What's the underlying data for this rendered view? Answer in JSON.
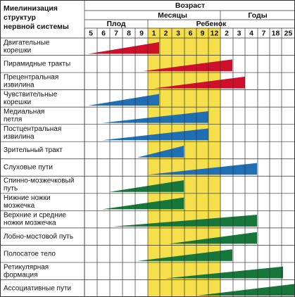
{
  "header": {
    "title": [
      "Миелинизация",
      "структур",
      "нервной системы"
    ],
    "age": "Возраст",
    "months": "Месяцы",
    "years": "Годы",
    "fetus": "Плод",
    "child": "Ребенок",
    "columns": [
      "5",
      "6",
      "7",
      "8",
      "9",
      "1",
      "2",
      "3",
      "6",
      "9",
      "12",
      "2",
      "3",
      "4",
      "7",
      "18",
      "25"
    ]
  },
  "rows": [
    [
      "Двигательные",
      "корешки"
    ],
    [
      "Пирамидные тракты"
    ],
    [
      "Прецентральная",
      "извилина"
    ],
    [
      "Чувствительные",
      "корешки"
    ],
    [
      "Медиальная",
      "петля"
    ],
    [
      "Постцентральная",
      "извилина"
    ],
    [
      "Зрительный тракт"
    ],
    [
      "Слуховые пути"
    ],
    [
      "Спинно-мозжечковый",
      "путь"
    ],
    [
      "Нижние ножки",
      "мозжечка"
    ],
    [
      "Верхние и средние",
      "ножки мозжечка"
    ],
    [
      "Лобно-мостовой путь"
    ],
    [
      "Полосатое тело"
    ],
    [
      "Ретикулярная",
      "формация"
    ],
    [
      "Ассоциативные пути"
    ]
  ]
}
